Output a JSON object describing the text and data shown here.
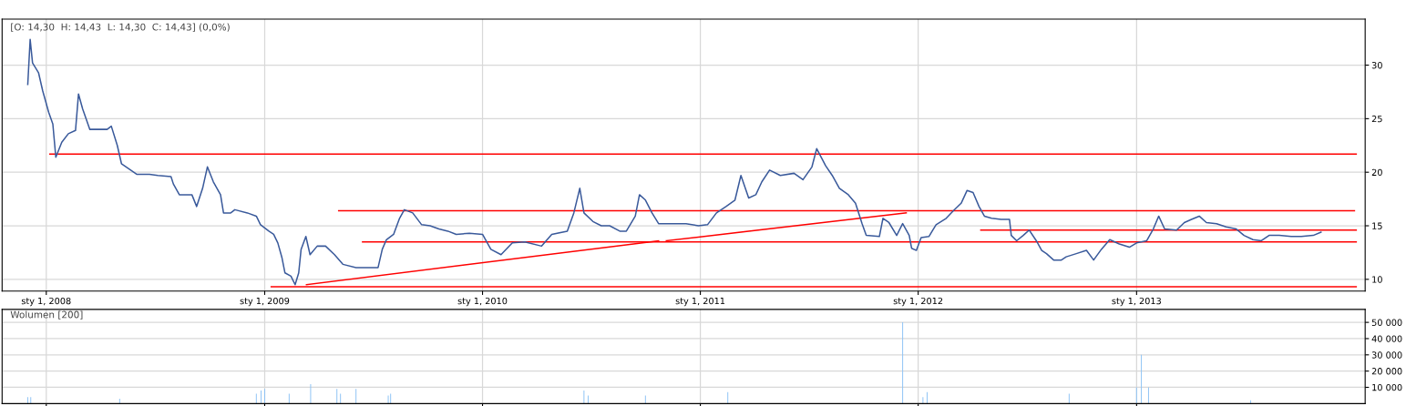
{
  "chart_data": [
    {
      "type": "line",
      "annotations": [
        "[O: 14,30  H: 14,43  L: 14,30  C: 14,43] (0,0%)"
      ],
      "grid": true,
      "line_style": "solid",
      "xlim": [
        "2007-10-19",
        "2014-01-19"
      ],
      "xticks": [
        {
          "value": "2008-01-01",
          "label": "sty 1, 2008"
        },
        {
          "value": "2009-01-01",
          "label": "sty 1, 2009"
        },
        {
          "value": "2010-01-01",
          "label": "sty 1, 2010"
        },
        {
          "value": "2011-01-01",
          "label": "sty 1, 2011"
        },
        {
          "value": "2012-01-01",
          "label": "sty 1, 2012"
        },
        {
          "value": "2013-01-01",
          "label": "sty 1, 2013"
        }
      ],
      "ylim": [
        8.9,
        34.3
      ],
      "yticks": [
        10,
        15,
        20,
        25,
        30
      ],
      "series": [
        {
          "color": "#3a5a9b",
          "x": [
            "2007-12-01",
            "2007-12-05",
            "2007-12-09",
            "2007-12-19",
            "2007-12-26",
            "2008-01-05",
            "2008-01-12",
            "2008-01-17",
            "2008-01-27",
            "2008-02-07",
            "2008-02-19",
            "2008-02-24",
            "2008-03-02",
            "2008-03-14",
            "2008-04-12",
            "2008-04-19",
            "2008-04-29",
            "2008-05-06",
            "2008-06-01",
            "2008-06-22",
            "2008-07-06",
            "2008-07-28",
            "2008-08-01",
            "2008-08-11",
            "2008-09-01",
            "2008-09-09",
            "2008-09-19",
            "2008-09-27",
            "2008-10-07",
            "2008-10-19",
            "2008-10-24",
            "2008-11-05",
            "2008-11-12",
            "2008-12-03",
            "2008-12-18",
            "2008-12-25",
            "2009-01-08",
            "2009-01-16",
            "2009-01-23",
            "2009-01-30",
            "2009-02-04",
            "2009-02-14",
            "2009-02-21",
            "2009-02-27",
            "2009-03-03",
            "2009-03-11",
            "2009-03-18",
            "2009-03-30",
            "2009-04-13",
            "2009-04-28",
            "2009-05-12",
            "2009-06-03",
            "2009-06-25",
            "2009-07-10",
            "2009-07-17",
            "2009-07-24",
            "2009-08-05",
            "2009-08-15",
            "2009-08-23",
            "2009-09-06",
            "2009-09-21",
            "2009-10-05",
            "2009-10-20",
            "2009-11-04",
            "2009-11-18",
            "2009-12-10",
            "2010-01-01",
            "2010-01-15",
            "2010-02-01",
            "2010-02-20",
            "2010-03-13",
            "2010-04-10",
            "2010-04-27",
            "2010-05-23",
            "2010-06-03",
            "2010-06-13",
            "2010-06-20",
            "2010-07-05",
            "2010-07-19",
            "2010-08-02",
            "2010-08-19",
            "2010-08-30",
            "2010-09-14",
            "2010-09-21",
            "2010-10-01",
            "2010-10-12",
            "2010-10-23",
            "2010-11-09",
            "2010-12-08",
            "2010-12-29",
            "2011-01-13",
            "2011-01-28",
            "2011-02-13",
            "2011-02-28",
            "2011-03-10",
            "2011-03-23",
            "2011-04-04",
            "2011-04-14",
            "2011-04-27",
            "2011-05-15",
            "2011-06-07",
            "2011-06-22",
            "2011-07-07",
            "2011-07-15",
            "2011-07-30",
            "2011-08-10",
            "2011-08-22",
            "2011-09-06",
            "2011-09-18",
            "2011-09-29",
            "2011-10-06",
            "2011-10-28",
            "2011-11-03",
            "2011-11-13",
            "2011-11-26",
            "2011-12-06",
            "2011-12-17",
            "2011-12-21",
            "2011-12-29",
            "2012-01-06",
            "2012-01-19",
            "2012-01-31",
            "2012-02-17",
            "2012-02-29",
            "2012-03-13",
            "2012-03-23",
            "2012-04-02",
            "2012-04-12",
            "2012-04-21",
            "2012-05-03",
            "2012-05-19",
            "2012-06-02",
            "2012-06-05",
            "2012-06-14",
            "2012-06-25",
            "2012-07-05",
            "2012-07-17",
            "2012-07-26",
            "2012-08-03",
            "2012-08-15",
            "2012-08-28",
            "2012-09-05",
            "2012-09-22",
            "2012-10-09",
            "2012-10-21",
            "2012-11-03",
            "2012-11-17",
            "2012-12-03",
            "2012-12-20",
            "2013-01-01",
            "2013-01-18",
            "2013-01-29",
            "2013-02-07",
            "2013-02-17",
            "2013-03-09",
            "2013-03-22",
            "2013-04-03",
            "2013-04-16",
            "2013-04-28",
            "2013-05-15",
            "2013-05-31",
            "2013-06-17",
            "2013-06-30",
            "2013-07-15",
            "2013-07-29",
            "2013-08-11",
            "2013-08-28",
            "2013-09-17",
            "2013-10-04",
            "2013-10-24",
            "2013-11-06"
          ],
          "values": [
            28.2,
            32.4,
            30.2,
            29.3,
            27.6,
            25.6,
            24.5,
            21.4,
            22.8,
            23.6,
            23.9,
            27.3,
            25.9,
            24.0,
            24.0,
            24.3,
            22.5,
            20.8,
            19.8,
            19.8,
            19.7,
            19.6,
            18.9,
            17.9,
            17.9,
            16.8,
            18.5,
            20.5,
            19.1,
            17.9,
            16.2,
            16.2,
            16.5,
            16.2,
            15.9,
            15.1,
            14.5,
            14.2,
            13.4,
            12.0,
            10.6,
            10.3,
            9.5,
            10.6,
            12.8,
            14.0,
            12.3,
            13.1,
            13.1,
            12.3,
            11.4,
            11.1,
            11.1,
            11.1,
            12.8,
            13.7,
            14.2,
            15.7,
            16.5,
            16.2,
            15.1,
            15.0,
            14.7,
            14.5,
            14.2,
            14.3,
            14.2,
            12.8,
            12.3,
            13.4,
            13.5,
            13.1,
            14.2,
            14.5,
            16.2,
            18.5,
            16.2,
            15.4,
            15.0,
            15.0,
            14.5,
            14.5,
            15.9,
            17.9,
            17.4,
            16.2,
            15.2,
            15.2,
            15.2,
            15.0,
            15.1,
            16.2,
            16.8,
            17.4,
            19.7,
            17.6,
            17.9,
            19.1,
            20.2,
            19.7,
            19.9,
            19.3,
            20.5,
            22.2,
            20.6,
            19.7,
            18.5,
            17.9,
            17.1,
            15.2,
            14.1,
            14.0,
            15.7,
            15.3,
            14.1,
            15.2,
            14.1,
            12.9,
            12.7,
            13.9,
            14.0,
            15.1,
            15.7,
            16.4,
            17.1,
            18.3,
            18.1,
            16.8,
            15.9,
            15.7,
            15.6,
            15.6,
            14.1,
            13.6,
            14.1,
            14.6,
            13.6,
            12.7,
            12.4,
            11.8,
            11.8,
            12.1,
            12.4,
            12.7,
            11.8,
            12.8,
            13.7,
            13.3,
            13.0,
            13.4,
            13.6,
            14.7,
            15.9,
            14.7,
            14.6,
            15.3,
            15.6,
            15.9,
            15.3,
            15.2,
            14.9,
            14.7,
            14.1,
            13.7,
            13.6,
            14.1,
            14.1,
            14.0,
            14.0,
            14.1,
            14.4
          ]
        },
        {
          "type": "line",
          "color": "#ff0000",
          "x": [
            "2008-01-07",
            "2014-01-04"
          ],
          "values": [
            21.7,
            21.7
          ]
        },
        {
          "type": "line",
          "color": "#ff0000",
          "x": [
            "2009-05-05",
            "2014-01-01"
          ],
          "values": [
            16.4,
            16.4
          ]
        },
        {
          "type": "line",
          "color": "#ff0000",
          "x": [
            "2009-06-14",
            "2014-01-04"
          ],
          "values": [
            13.5,
            13.5
          ]
        },
        {
          "type": "line",
          "color": "#ff0000",
          "x": [
            "2012-04-15",
            "2014-01-04"
          ],
          "values": [
            14.6,
            14.6
          ]
        },
        {
          "type": "line",
          "color": "#ff0000",
          "x": [
            "2009-01-12",
            "2014-01-04"
          ],
          "values": [
            9.3,
            9.3
          ]
        },
        {
          "type": "line",
          "color": "#ff0000",
          "x": [
            "2009-03-12",
            "2010-10-23"
          ],
          "values": [
            9.5,
            13.6
          ]
        },
        {
          "type": "line",
          "color": "#ff0000",
          "x": [
            "2010-11-05",
            "2011-12-12"
          ],
          "values": [
            13.6,
            16.2
          ]
        }
      ]
    },
    {
      "type": "bar",
      "annotations": [
        "Wolumen [200]"
      ],
      "grid": true,
      "tick_labels": "y",
      "xlim": [
        "2007-10-19",
        "2014-01-19"
      ],
      "xticks": [
        {
          "value": "2008-01-01",
          "label": null
        },
        {
          "value": "2009-01-01",
          "label": null
        },
        {
          "value": "2010-01-01",
          "label": null
        },
        {
          "value": "2011-01-01",
          "label": null
        },
        {
          "value": "2012-01-01",
          "label": null
        },
        {
          "value": "2013-01-01",
          "label": null
        }
      ],
      "ylim": [
        0,
        58000
      ],
      "yticks": [
        {
          "value": 10000,
          "label": "10 000"
        },
        {
          "value": 20000,
          "label": "20 000"
        },
        {
          "value": 30000,
          "label": "30 000"
        },
        {
          "value": 40000,
          "label": "40 000"
        },
        {
          "value": 50000,
          "label": "50 000"
        }
      ],
      "series": [
        {
          "color": "#8ec3f5",
          "x": [
            "2007-12-01",
            "2007-12-06",
            "2008-05-03",
            "2008-12-18",
            "2008-12-26",
            "2009-01-01",
            "2009-02-11",
            "2009-03-19",
            "2009-05-02",
            "2009-05-08",
            "2009-06-03",
            "2009-07-27",
            "2009-07-31",
            "2010-06-20",
            "2010-06-27",
            "2010-10-01",
            "2011-02-16",
            "2011-12-06",
            "2012-01-09",
            "2012-01-16",
            "2012-09-10",
            "2013-01-01",
            "2013-01-09",
            "2013-01-21",
            "2013-07-11"
          ],
          "values": [
            4000,
            4000,
            3000,
            6000,
            8000,
            9000,
            6000,
            12000,
            9000,
            6000,
            9000,
            5000,
            6000,
            8000,
            5000,
            5000,
            7000,
            50000,
            4000,
            7000,
            6000,
            10000,
            30000,
            10000,
            2000
          ]
        }
      ]
    }
  ]
}
